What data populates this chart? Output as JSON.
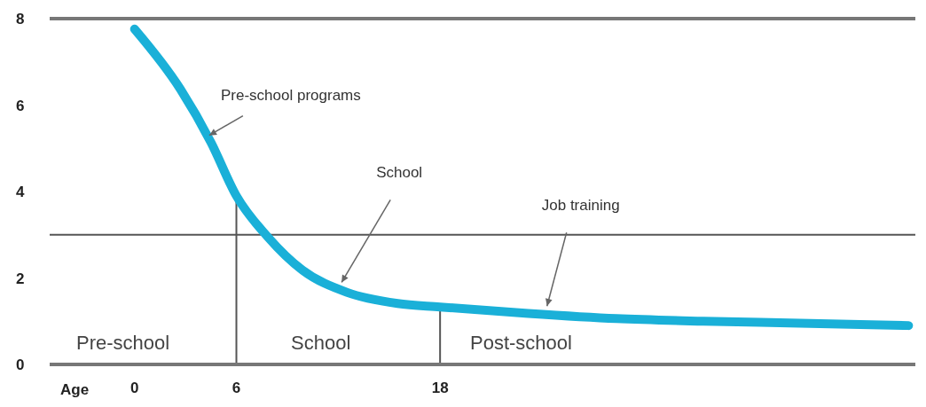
{
  "chart_data": {
    "type": "line",
    "xlabel": "Age",
    "x": [
      0,
      2.7,
      4.5,
      6,
      7.85,
      9.9,
      12.5,
      15.5,
      18,
      23.2,
      28.4,
      33.5,
      38.6,
      45.6
    ],
    "series": [
      {
        "color": "#1ab0d8",
        "values": [
          7.76,
          6.37,
          5.14,
          3.9,
          2.95,
          2.18,
          1.67,
          1.41,
          1.33,
          1.18,
          1.06,
          1.0,
          0.96,
          0.9
        ]
      }
    ],
    "xlim": [
      -5,
      46
    ],
    "xticks": [
      0,
      6,
      18
    ],
    "ylim": [
      0,
      8
    ],
    "yticks": [
      0,
      2,
      4,
      6,
      8
    ],
    "grid": false,
    "marker": "none",
    "line_style": "solid",
    "ref_lines": [
      {
        "axis": "y",
        "value": 3,
        "color": "#555555"
      },
      {
        "axis": "x",
        "value": 6,
        "color": "#555555"
      },
      {
        "axis": "x",
        "value": 18,
        "color": "#555555"
      }
    ],
    "annotations": [
      "Pre-school",
      "School",
      "Post-school",
      {
        "text": "Pre-school programs",
        "x": 4.4,
        "y": 5.3
      },
      {
        "text": "School",
        "x": 12.2,
        "y": 1.9
      },
      {
        "text": "Job training",
        "x": 24.3,
        "y": 1.35
      }
    ]
  }
}
